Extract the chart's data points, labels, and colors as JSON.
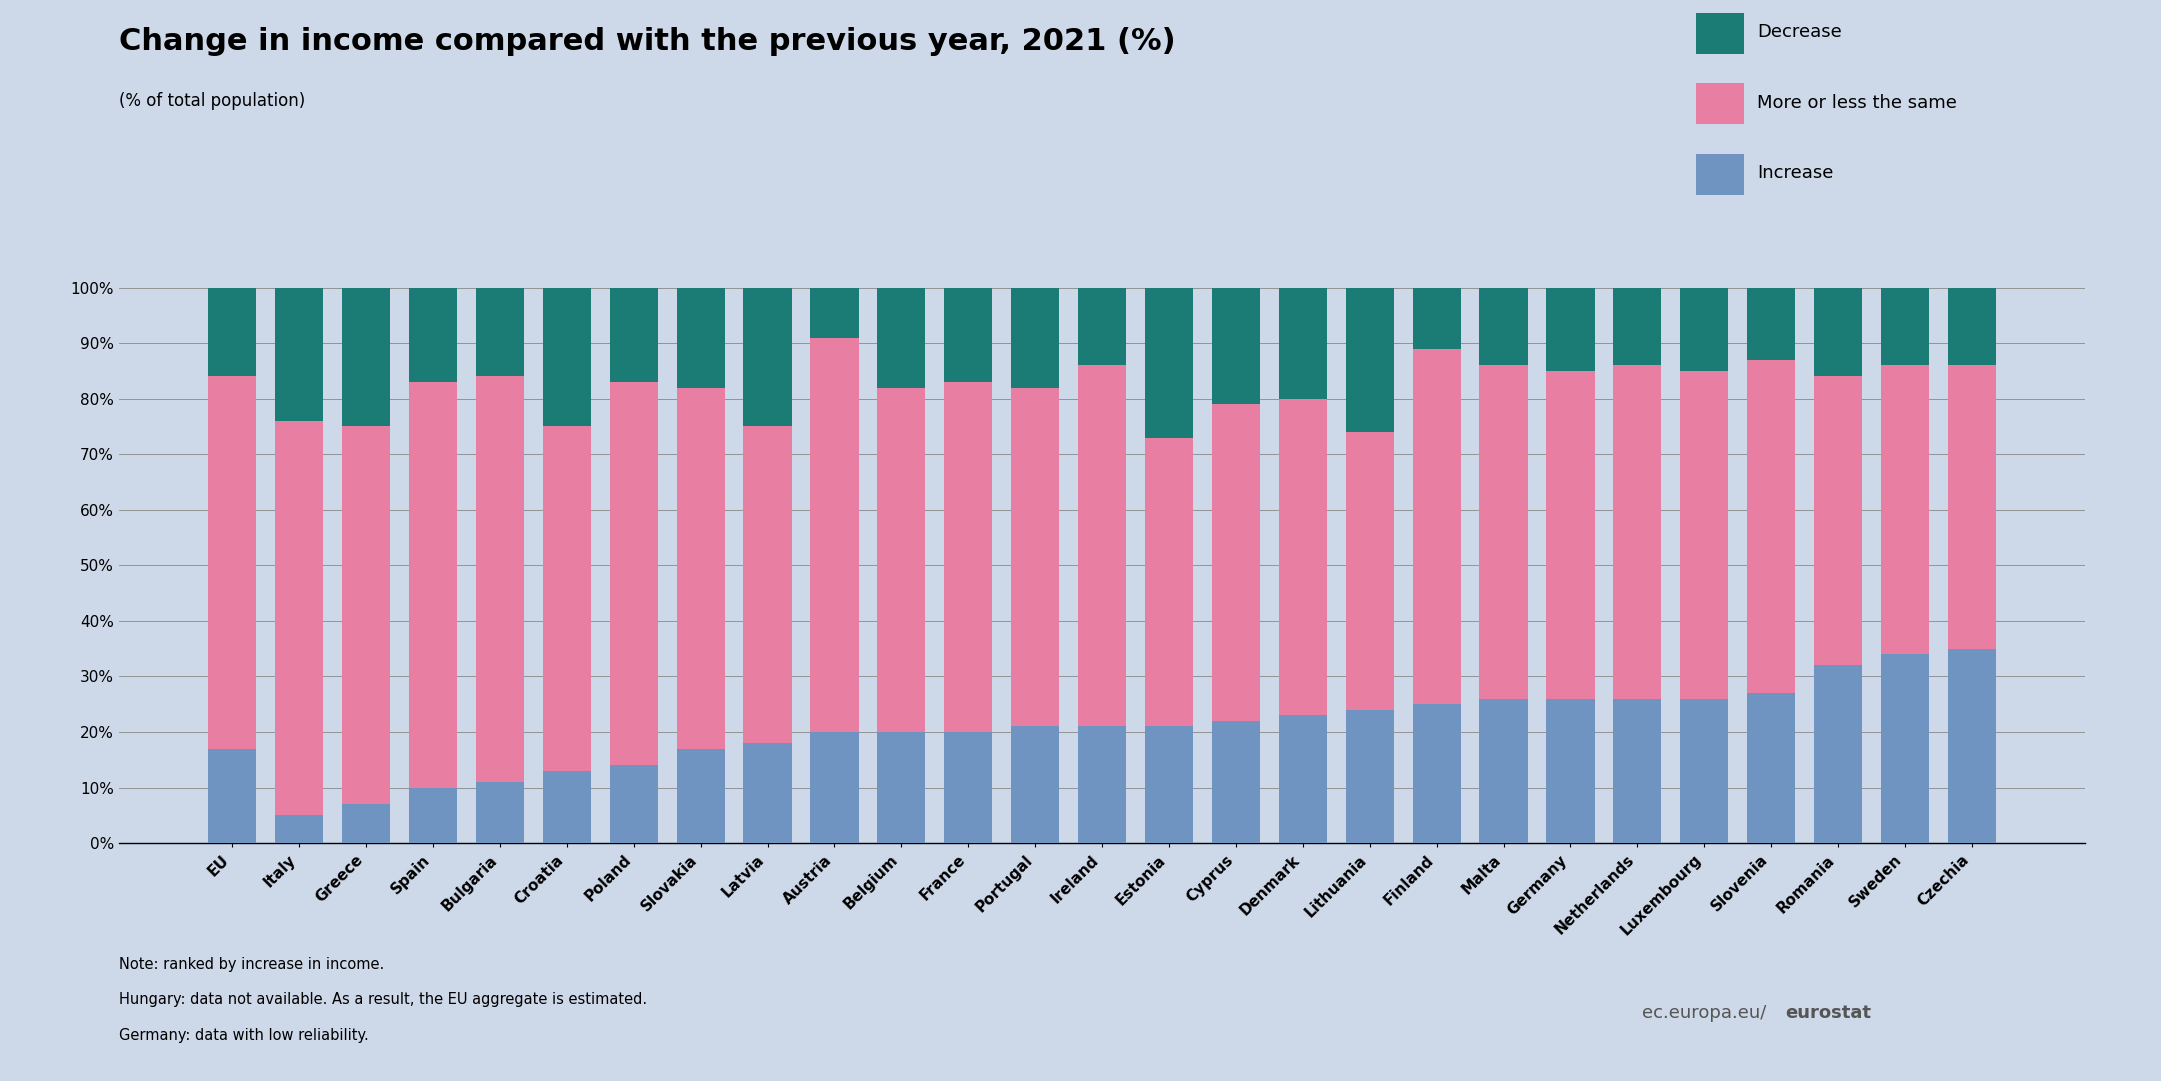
{
  "title": "Change in income compared with the previous year, 2021 (%)",
  "subtitle": "(% of total population)",
  "categories": [
    "EU",
    "Italy",
    "Greece",
    "Spain",
    "Bulgaria",
    "Croatia",
    "Poland",
    "Slovakia",
    "Latvia",
    "Austria",
    "Belgium",
    "France",
    "Portugal",
    "Ireland",
    "Estonia",
    "Cyprus",
    "Denmark",
    "Lithuania",
    "Finland",
    "Malta",
    "Germany",
    "Netherlands",
    "Luxembourg",
    "Slovenia",
    "Romania",
    "Sweden",
    "Czechia"
  ],
  "increase": [
    17,
    5,
    7,
    10,
    11,
    13,
    14,
    17,
    18,
    20,
    20,
    20,
    21,
    21,
    21,
    22,
    23,
    24,
    25,
    26,
    26,
    26,
    26,
    27,
    32,
    34,
    35
  ],
  "more_or_less": [
    67,
    71,
    68,
    73,
    73,
    62,
    69,
    65,
    57,
    71,
    62,
    63,
    61,
    65,
    52,
    57,
    57,
    50,
    64,
    60,
    59,
    60,
    59,
    60,
    52,
    52,
    51
  ],
  "decrease": [
    16,
    24,
    25,
    17,
    16,
    25,
    17,
    18,
    25,
    9,
    18,
    17,
    18,
    14,
    27,
    21,
    20,
    26,
    11,
    14,
    15,
    14,
    15,
    13,
    16,
    14,
    14
  ],
  "color_increase": "#7094c1",
  "color_same": "#e87ea1",
  "color_decrease": "#1a7c74",
  "background_color": "#cdd8e8",
  "legend_decrease": "Decrease",
  "legend_same": "More or less the same",
  "legend_increase": "Increase",
  "note_line1": "Note: ranked by increase in income.",
  "note_line2": "Hungary: data not available. As a result, the EU aggregate is estimated.",
  "note_line3": "Germany: data with low reliability.",
  "website_normal": "ec.europa.eu/",
  "website_bold": "eurostat"
}
